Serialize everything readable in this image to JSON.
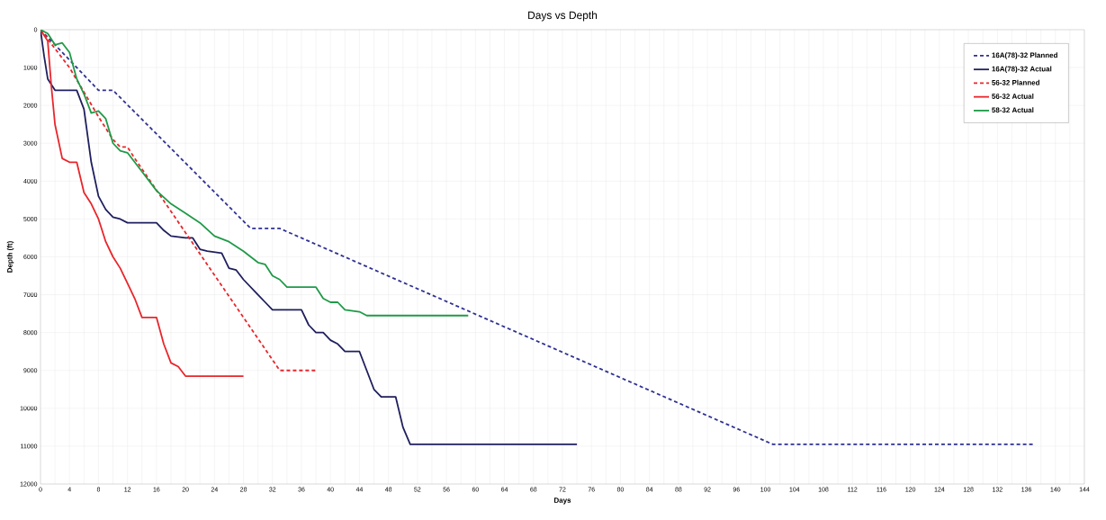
{
  "chart_data": {
    "type": "line",
    "title": "Days vs Depth",
    "xlabel": "Days",
    "ylabel": "Depth (ft)",
    "xlim": [
      0,
      144
    ],
    "xticks": [
      0,
      4,
      8,
      12,
      16,
      20,
      24,
      28,
      32,
      36,
      40,
      44,
      48,
      52,
      56,
      60,
      64,
      68,
      72,
      76,
      80,
      84,
      88,
      92,
      96,
      100,
      104,
      108,
      112,
      116,
      120,
      124,
      128,
      132,
      136,
      140,
      144
    ],
    "ylim": [
      12000,
      0
    ],
    "yticks": [
      0,
      1000,
      2000,
      3000,
      4000,
      5000,
      6000,
      7000,
      8000,
      9000,
      10000,
      11000,
      12000
    ],
    "grid": true,
    "legend": "top right",
    "marker": "none",
    "series": [
      {
        "name": "16A(78)-32 Planned",
        "color": "#2e3192",
        "line_style": "dashed",
        "x": [
          0,
          8,
          10,
          29,
          33,
          101,
          137
        ],
        "values": [
          0,
          1600,
          1600,
          5250,
          5250,
          10950,
          10950
        ]
      },
      {
        "name": "16A(78)-32 Actual",
        "color": "#1f1f5e",
        "line_style": "solid",
        "x": [
          0,
          0.5,
          1,
          2,
          5,
          6,
          7,
          8,
          9,
          10,
          11,
          12,
          16,
          17,
          18,
          20,
          21,
          22,
          23,
          25,
          26,
          27,
          28,
          30,
          31,
          32,
          36,
          37,
          38,
          39,
          40,
          41,
          42,
          44,
          45,
          46,
          47,
          49,
          50,
          51,
          54,
          74
        ],
        "values": [
          0,
          700,
          1300,
          1600,
          1600,
          2100,
          3500,
          4400,
          4750,
          4950,
          5000,
          5100,
          5100,
          5300,
          5450,
          5500,
          5500,
          5800,
          5850,
          5900,
          6300,
          6350,
          6600,
          7000,
          7200,
          7400,
          7400,
          7800,
          8000,
          8000,
          8200,
          8300,
          8500,
          8500,
          9000,
          9500,
          9700,
          9700,
          10500,
          10950,
          10950,
          10950
        ]
      },
      {
        "name": "56-32 Planned",
        "color": "#e8262b",
        "line_style": "dashed",
        "x": [
          0,
          4,
          8,
          10,
          11,
          12,
          13,
          33,
          38
        ],
        "values": [
          0,
          1000,
          2300,
          2900,
          3100,
          3100,
          3400,
          9000,
          9000
        ]
      },
      {
        "name": "56-32 Actual",
        "color": "#e8262b",
        "line_style": "solid",
        "x": [
          0,
          1,
          1.5,
          2,
          3,
          4,
          5,
          6,
          7,
          8,
          9,
          10,
          11,
          12,
          13,
          14,
          16,
          17,
          18,
          19,
          20,
          28
        ],
        "values": [
          0,
          300,
          1500,
          2500,
          3400,
          3500,
          3500,
          4300,
          4600,
          5000,
          5600,
          6000,
          6300,
          6700,
          7100,
          7600,
          7600,
          8300,
          8800,
          8900,
          9150,
          9150
        ]
      },
      {
        "name": "58-32  Actual",
        "color": "#1f9a48",
        "line_style": "solid",
        "x": [
          0,
          1,
          2,
          3,
          4,
          5,
          6,
          7,
          8,
          9,
          10,
          11,
          12,
          14,
          16,
          18,
          20,
          22,
          24,
          26,
          28,
          30,
          31,
          32,
          33,
          34,
          38,
          39,
          40,
          41,
          42,
          44,
          45,
          59
        ],
        "values": [
          0,
          100,
          400,
          350,
          600,
          1300,
          1700,
          2200,
          2150,
          2350,
          3000,
          3200,
          3250,
          3750,
          4250,
          4600,
          4850,
          5100,
          5450,
          5600,
          5850,
          6150,
          6200,
          6500,
          6600,
          6800,
          6800,
          7100,
          7200,
          7200,
          7400,
          7450,
          7550,
          7550
        ]
      }
    ]
  }
}
